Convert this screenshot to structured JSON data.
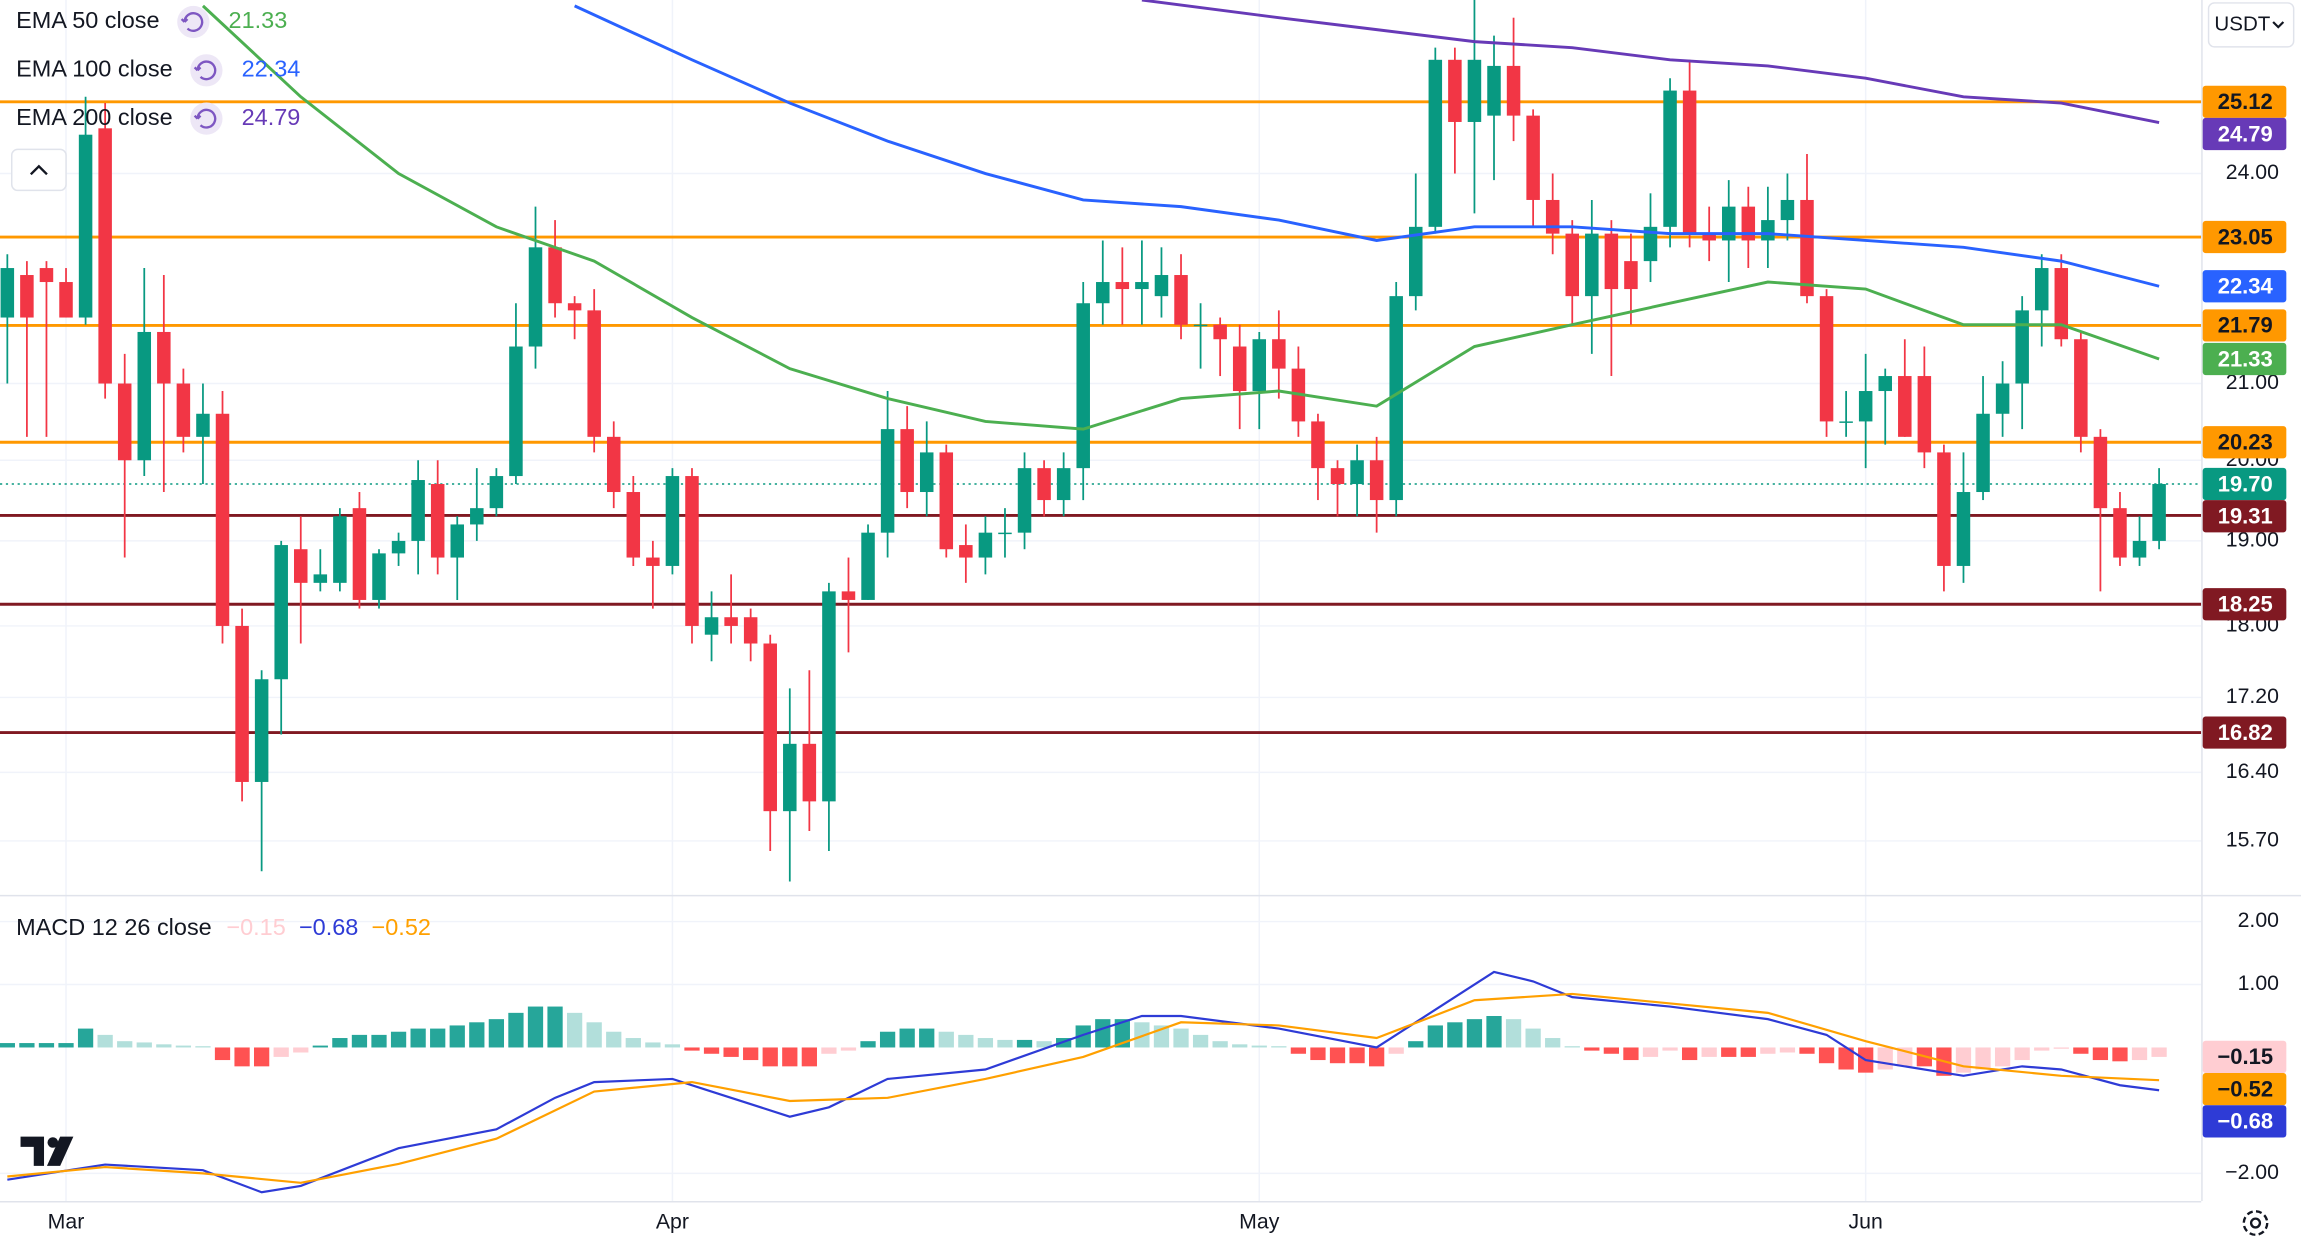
{
  "header": {
    "currency": "USDT"
  },
  "chart_data": [
    {
      "type": "candlestick",
      "categories": [
        null,
        null,
        null,
        "Mar",
        null,
        null,
        null,
        null,
        null,
        null,
        null,
        null,
        null,
        null,
        null,
        null,
        null,
        null,
        null,
        null,
        null,
        null,
        null,
        null,
        null,
        null,
        null,
        null,
        null,
        null,
        null,
        null,
        null,
        null,
        "Apr",
        null,
        null,
        null,
        null,
        null,
        null,
        null,
        null,
        null,
        null,
        null,
        null,
        null,
        null,
        null,
        null,
        null,
        null,
        null,
        null,
        null,
        null,
        null,
        null,
        null,
        null,
        null,
        null,
        null,
        "May",
        null,
        null,
        null,
        null,
        null,
        null,
        null,
        null,
        null,
        null,
        null,
        null,
        null,
        null,
        null,
        null,
        null,
        null,
        null,
        null,
        null,
        null,
        null,
        null,
        null,
        null,
        null,
        null,
        null,
        null,
        "Jun",
        null,
        null,
        null,
        null,
        null,
        null,
        null,
        null,
        null,
        null,
        null,
        null,
        null,
        null,
        null
      ],
      "open": [
        21.9,
        22.5,
        22.6,
        22.4,
        21.9,
        24.7,
        21.0,
        20.0,
        21.7,
        21.0,
        20.3,
        20.6,
        18.0,
        16.3,
        17.4,
        18.9,
        18.5,
        18.5,
        19.4,
        18.3,
        18.85,
        19.0,
        19.7,
        18.8,
        19.2,
        19.4,
        19.8,
        21.5,
        22.9,
        22.1,
        22.0,
        20.3,
        19.6,
        18.8,
        18.7,
        19.8,
        17.9,
        18.1,
        18.1,
        17.8,
        16.0,
        16.7,
        16.1,
        18.4,
        18.3,
        19.1,
        20.4,
        19.6,
        20.1,
        18.95,
        18.8,
        19.1,
        19.1,
        19.9,
        19.5,
        19.9,
        22.1,
        22.4,
        22.3,
        22.2,
        22.5,
        21.8,
        21.8,
        21.5,
        20.9,
        21.6,
        21.2,
        20.5,
        19.9,
        19.7,
        20.0,
        19.5,
        22.2,
        23.2,
        25.8,
        24.8,
        24.9,
        25.7,
        24.9,
        23.6,
        23.1,
        22.2,
        23.1,
        22.7,
        22.7,
        23.2,
        25.3,
        23.1,
        23.0,
        23.5,
        23.0,
        23.3,
        23.6,
        22.2,
        20.5,
        20.5,
        20.9,
        21.1,
        21.1,
        20.1,
        18.7,
        19.6,
        20.6,
        21.0,
        22.0,
        22.6,
        21.6,
        20.3,
        19.4,
        18.8,
        19.0
      ],
      "high": [
        22.8,
        22.7,
        22.7,
        22.6,
        25.2,
        25.1,
        21.4,
        22.6,
        22.5,
        21.2,
        21.0,
        20.9,
        18.2,
        17.5,
        19.0,
        19.3,
        18.9,
        19.4,
        19.6,
        18.9,
        19.1,
        20.0,
        20.0,
        19.3,
        19.9,
        19.9,
        22.1,
        23.5,
        23.3,
        22.2,
        22.3,
        20.5,
        19.8,
        19.0,
        19.9,
        19.9,
        18.4,
        18.6,
        18.2,
        17.9,
        17.3,
        17.5,
        18.5,
        18.8,
        19.2,
        20.9,
        20.7,
        20.5,
        20.2,
        19.2,
        19.3,
        19.4,
        20.1,
        20.0,
        20.1,
        22.4,
        23.0,
        22.9,
        23.0,
        22.9,
        22.8,
        22.1,
        21.9,
        21.8,
        21.7,
        22.0,
        21.5,
        20.6,
        20.0,
        20.2,
        20.3,
        22.4,
        24.0,
        26.0,
        26.0,
        26.8,
        26.2,
        26.5,
        25.0,
        24.0,
        23.3,
        23.6,
        23.3,
        23.1,
        23.7,
        25.5,
        25.8,
        23.5,
        23.9,
        23.8,
        23.8,
        24.0,
        24.3,
        22.3,
        20.9,
        21.4,
        21.2,
        21.6,
        21.5,
        20.2,
        20.1,
        21.1,
        21.3,
        22.2,
        22.8,
        22.8,
        21.7,
        20.4,
        19.6,
        19.3,
        19.9
      ],
      "low": [
        21.0,
        20.3,
        20.3,
        21.9,
        21.8,
        20.8,
        18.8,
        19.8,
        19.6,
        20.1,
        19.7,
        17.8,
        16.1,
        15.4,
        16.8,
        17.8,
        18.4,
        18.4,
        18.2,
        18.2,
        18.7,
        18.6,
        18.6,
        18.3,
        19.0,
        19.3,
        19.7,
        21.2,
        21.9,
        21.6,
        20.1,
        19.4,
        18.7,
        18.2,
        18.6,
        17.8,
        17.6,
        17.8,
        17.6,
        15.6,
        15.3,
        15.8,
        15.6,
        17.7,
        18.3,
        18.8,
        19.4,
        19.3,
        18.8,
        18.5,
        18.6,
        18.8,
        18.9,
        19.3,
        19.3,
        19.5,
        21.8,
        21.8,
        21.8,
        21.9,
        21.6,
        21.2,
        21.1,
        20.4,
        20.4,
        20.8,
        20.3,
        19.5,
        19.3,
        19.3,
        19.1,
        19.3,
        22.0,
        23.1,
        24.0,
        23.4,
        23.9,
        24.5,
        23.2,
        22.8,
        21.8,
        21.4,
        21.1,
        21.8,
        22.4,
        22.9,
        22.9,
        22.7,
        22.4,
        22.6,
        22.6,
        23.0,
        22.1,
        20.3,
        20.3,
        19.9,
        20.2,
        20.3,
        19.9,
        18.4,
        18.5,
        19.5,
        20.3,
        20.4,
        21.5,
        21.5,
        20.1,
        18.4,
        18.7,
        18.7,
        18.9
      ],
      "close": [
        22.6,
        21.9,
        22.4,
        21.9,
        24.6,
        21.0,
        20.0,
        21.7,
        21.0,
        20.3,
        20.6,
        18.0,
        16.3,
        17.4,
        18.95,
        18.5,
        18.6,
        19.3,
        18.3,
        18.85,
        19.0,
        19.75,
        18.8,
        19.2,
        19.4,
        19.8,
        21.5,
        22.9,
        22.1,
        22.0,
        20.3,
        19.6,
        18.8,
        18.7,
        19.8,
        18.0,
        18.1,
        18.0,
        17.8,
        16.0,
        16.7,
        16.1,
        18.4,
        18.3,
        19.1,
        20.4,
        19.6,
        20.1,
        18.9,
        18.8,
        19.1,
        19.1,
        19.9,
        19.5,
        19.9,
        22.1,
        22.4,
        22.3,
        22.4,
        22.5,
        21.8,
        21.8,
        21.6,
        20.9,
        21.6,
        21.2,
        20.5,
        19.9,
        19.7,
        20.0,
        19.5,
        22.2,
        23.2,
        25.8,
        24.8,
        25.8,
        25.7,
        24.9,
        23.6,
        23.1,
        22.2,
        23.1,
        22.3,
        22.3,
        23.2,
        25.3,
        23.1,
        23.0,
        23.5,
        23.0,
        23.3,
        23.6,
        22.2,
        20.5,
        20.5,
        20.9,
        21.1,
        20.3,
        20.1,
        18.7,
        19.6,
        20.6,
        21.0,
        22.0,
        22.6,
        21.6,
        20.3,
        19.4,
        18.8,
        19.0,
        19.7
      ],
      "up_color": "#089981",
      "down_color": "#f23645",
      "ylim": [
        15.17,
        26.8
      ],
      "log_scale": true,
      "grid": true,
      "yticks": [
        {
          "value": 24,
          "label": "24.00"
        },
        {
          "value": 21,
          "label": "21.00"
        },
        {
          "value": 20,
          "label": "20.00"
        },
        {
          "value": 19,
          "label": "19.00"
        },
        {
          "value": 18,
          "label": "18.00"
        },
        {
          "value": 17.2,
          "label": "17.20"
        },
        {
          "value": 16.4,
          "label": "16.40"
        },
        {
          "value": 15.7,
          "label": "15.70"
        }
      ],
      "overlays": [
        {
          "name": "EMA 50 close",
          "color": "#4caf50",
          "x": [
            10,
            15,
            20,
            25,
            30,
            35,
            40,
            45,
            50,
            55,
            60,
            65,
            70,
            75,
            80,
            85,
            90,
            95,
            100,
            105,
            110
          ],
          "values": [
            26.7,
            25.2,
            24.0,
            23.2,
            22.7,
            21.9,
            21.2,
            20.8,
            20.5,
            20.4,
            20.8,
            20.9,
            20.7,
            21.5,
            21.8,
            22.1,
            22.4,
            22.3,
            21.8,
            21.8,
            21.33
          ]
        },
        {
          "name": "EMA 100 close",
          "color": "#2962ff",
          "x": [
            29,
            35,
            40,
            45,
            50,
            55,
            60,
            65,
            70,
            75,
            80,
            85,
            90,
            95,
            100,
            105,
            110
          ],
          "values": [
            26.7,
            25.8,
            25.1,
            24.5,
            24.0,
            23.6,
            23.5,
            23.3,
            23.0,
            23.2,
            23.2,
            23.1,
            23.1,
            23.0,
            22.9,
            22.7,
            22.34
          ]
        },
        {
          "name": "EMA 200 close",
          "color": "#673ab7",
          "x": [
            58,
            65,
            70,
            75,
            80,
            85,
            90,
            95,
            100,
            105,
            110
          ],
          "values": [
            26.8,
            26.5,
            26.3,
            26.1,
            26.0,
            25.8,
            25.7,
            25.5,
            25.2,
            25.1,
            24.79
          ]
        }
      ],
      "levels": [
        {
          "value": 25.12,
          "color": "#ff9800"
        },
        {
          "value": 23.05,
          "color": "#ff9800"
        },
        {
          "value": 21.79,
          "color": "#ff9800"
        },
        {
          "value": 20.23,
          "color": "#ff9800"
        },
        {
          "value": 19.31,
          "color": "#801922"
        },
        {
          "value": 18.25,
          "color": "#801922"
        },
        {
          "value": 16.82,
          "color": "#801922"
        }
      ],
      "last_price": {
        "value": 19.7,
        "label": "19.70",
        "color": "#089981"
      }
    },
    {
      "type": "macd",
      "title": "MACD 12 26 close",
      "ylim": [
        -2.44,
        2.4
      ],
      "yticks": [
        {
          "value": 2,
          "label": "2.00"
        },
        {
          "value": 1,
          "label": "1.00"
        },
        {
          "value": -2,
          "label": "−2.00"
        }
      ],
      "histogram": {
        "values": [
          0.07,
          0.07,
          0.07,
          0.07,
          0.3,
          0.2,
          0.1,
          0.08,
          0.05,
          0.03,
          0.02,
          -0.2,
          -0.3,
          -0.3,
          -0.15,
          -0.08,
          0.03,
          0.15,
          0.2,
          0.2,
          0.25,
          0.3,
          0.3,
          0.35,
          0.4,
          0.45,
          0.55,
          0.65,
          0.65,
          0.55,
          0.4,
          0.25,
          0.15,
          0.08,
          0.05,
          -0.05,
          -0.1,
          -0.15,
          -0.2,
          -0.3,
          -0.3,
          -0.3,
          -0.1,
          -0.05,
          0.1,
          0.25,
          0.3,
          0.3,
          0.25,
          0.2,
          0.15,
          0.12,
          0.12,
          0.1,
          0.15,
          0.35,
          0.45,
          0.45,
          0.4,
          0.35,
          0.3,
          0.2,
          0.1,
          0.05,
          0.03,
          0.02,
          -0.1,
          -0.2,
          -0.25,
          -0.25,
          -0.3,
          -0.1,
          0.1,
          0.35,
          0.4,
          0.45,
          0.5,
          0.45,
          0.3,
          0.15,
          0.02,
          -0.05,
          -0.1,
          -0.2,
          -0.15,
          -0.05,
          -0.2,
          -0.15,
          -0.15,
          -0.15,
          -0.1,
          -0.08,
          -0.1,
          -0.25,
          -0.35,
          -0.4,
          -0.35,
          -0.3,
          -0.3,
          -0.45,
          -0.4,
          -0.35,
          -0.3,
          -0.2,
          -0.05,
          -0.02,
          -0.1,
          -0.2,
          -0.22,
          -0.2,
          -0.15
        ],
        "colors": {
          "rising_up": "#26a69a",
          "falling_up": "#b2dfdb",
          "falling_down": "#ff5252",
          "rising_down": "#ffcdd2"
        }
      },
      "macd": {
        "color": "#2e3bd6",
        "x": [
          0,
          5,
          10,
          13,
          15,
          20,
          25,
          28,
          30,
          34,
          36,
          40,
          42,
          45,
          50,
          55,
          58,
          60,
          65,
          70,
          73,
          76,
          78,
          80,
          85,
          90,
          93,
          95,
          100,
          103,
          105,
          108,
          110
        ],
        "values": [
          -2.1,
          -1.86,
          -1.95,
          -2.3,
          -2.2,
          -1.6,
          -1.3,
          -0.8,
          -0.55,
          -0.5,
          -0.7,
          -1.1,
          -0.95,
          -0.5,
          -0.35,
          0.2,
          0.5,
          0.5,
          0.3,
          0.0,
          0.6,
          1.2,
          1.05,
          0.8,
          0.65,
          0.45,
          0.2,
          -0.2,
          -0.45,
          -0.3,
          -0.35,
          -0.6,
          -0.68
        ]
      },
      "signal": {
        "color": "#ffa000",
        "x": [
          0,
          5,
          10,
          15,
          20,
          25,
          30,
          35,
          40,
          45,
          50,
          55,
          60,
          65,
          70,
          75,
          80,
          85,
          90,
          95,
          100,
          105,
          110
        ],
        "values": [
          -2.05,
          -1.9,
          -2.0,
          -2.15,
          -1.85,
          -1.45,
          -0.7,
          -0.55,
          -0.85,
          -0.8,
          -0.5,
          -0.15,
          0.4,
          0.35,
          0.15,
          0.75,
          0.85,
          0.7,
          0.55,
          0.1,
          -0.3,
          -0.45,
          -0.52
        ]
      },
      "readouts": [
        {
          "value": -0.15,
          "label": "−0.15",
          "color": "#ffcdd2"
        },
        {
          "value": -0.68,
          "label": "−0.68",
          "color": "#2e3bd6"
        },
        {
          "value": -0.52,
          "label": "−0.52",
          "color": "#ffa000"
        }
      ]
    }
  ]
}
